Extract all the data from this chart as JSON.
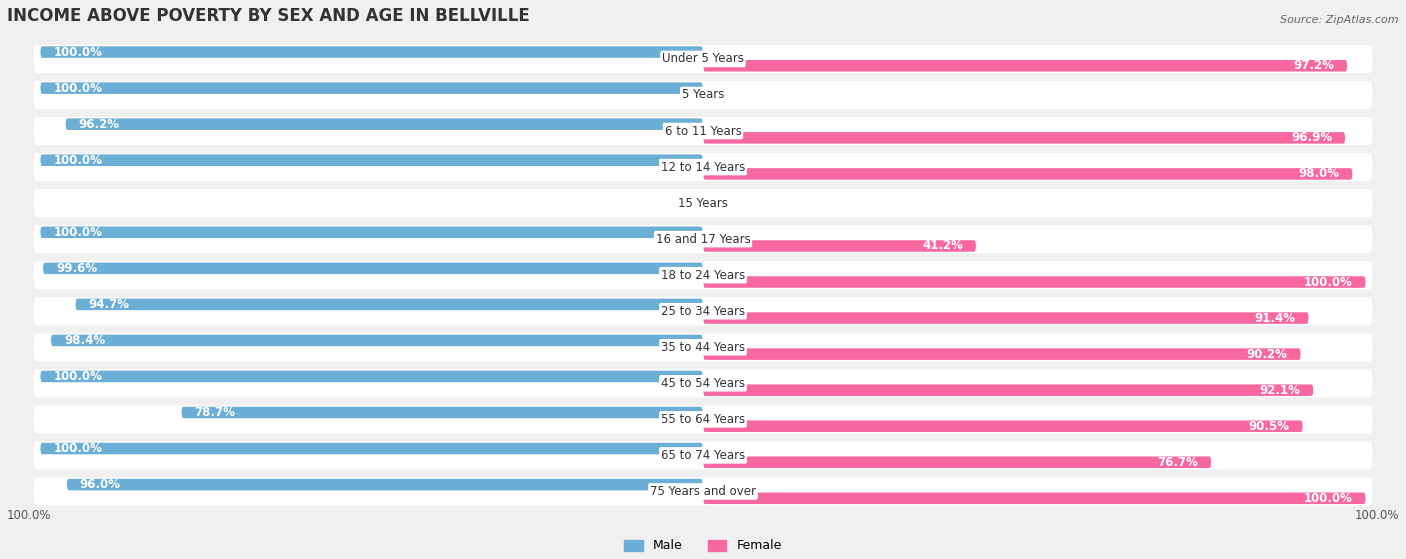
{
  "title": "INCOME ABOVE POVERTY BY SEX AND AGE IN BELLVILLE",
  "source": "Source: ZipAtlas.com",
  "categories": [
    "Under 5 Years",
    "5 Years",
    "6 to 11 Years",
    "12 to 14 Years",
    "15 Years",
    "16 and 17 Years",
    "18 to 24 Years",
    "25 to 34 Years",
    "35 to 44 Years",
    "45 to 54 Years",
    "55 to 64 Years",
    "65 to 74 Years",
    "75 Years and over"
  ],
  "male_values": [
    100.0,
    100.0,
    96.2,
    100.0,
    0.0,
    100.0,
    99.6,
    94.7,
    98.4,
    100.0,
    78.7,
    100.0,
    96.0
  ],
  "female_values": [
    97.2,
    0.0,
    96.9,
    98.0,
    0.0,
    41.2,
    100.0,
    91.4,
    90.2,
    92.1,
    90.5,
    76.7,
    100.0
  ],
  "male_color": "#6baed6",
  "female_color": "#f768a1",
  "male_light_color": "#c6dbef",
  "female_light_color": "#fcc5d8",
  "background_color": "#f0f0f0",
  "title_fontsize": 12,
  "label_fontsize": 8.5,
  "value_fontsize": 8.5,
  "legend_male": "Male",
  "legend_female": "Female"
}
